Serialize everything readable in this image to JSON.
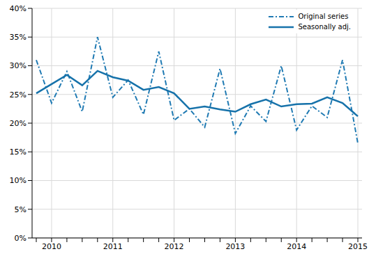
{
  "chart_data": {
    "type": "line",
    "categories": [
      null,
      "2010",
      null,
      null,
      null,
      "2011",
      null,
      null,
      null,
      "2012",
      null,
      null,
      null,
      "2013",
      null,
      null,
      null,
      "2014",
      null,
      null,
      null,
      "2015"
    ],
    "series": [
      {
        "name": "Original series",
        "color": "#1f7ab3",
        "line_style": "dashdot",
        "values": [
          31,
          23.5,
          29,
          22,
          35,
          24.5,
          27.5,
          21.5,
          32.5,
          20.5,
          22.5,
          19.3,
          29.5,
          18.2,
          23,
          20.3,
          30,
          18.8,
          23,
          21,
          31,
          16.5
        ]
      },
      {
        "name": "Seasonally adj.",
        "color": "#1672aa",
        "line_style": "solid",
        "values": [
          25.2,
          26.8,
          28.4,
          26.6,
          29.1,
          28,
          27.4,
          25.8,
          26.3,
          25.2,
          22.5,
          22.9,
          22.4,
          22,
          23.3,
          24.1,
          22.9,
          23.3,
          23.4,
          24.5,
          23.5,
          21.2
        ]
      }
    ],
    "ylim": [
      0,
      40
    ],
    "yticks": [
      {
        "value": 0,
        "label": "0%"
      },
      {
        "value": 5,
        "label": "5%"
      },
      {
        "value": 10,
        "label": "10%"
      },
      {
        "value": 15,
        "label": "15%"
      },
      {
        "value": 20,
        "label": "20%"
      },
      {
        "value": 25,
        "label": "25%"
      },
      {
        "value": 30,
        "label": "30%"
      },
      {
        "value": 35,
        "label": "35%"
      },
      {
        "value": 40,
        "label": "40%"
      }
    ],
    "grid": true,
    "legend": "top-right"
  }
}
